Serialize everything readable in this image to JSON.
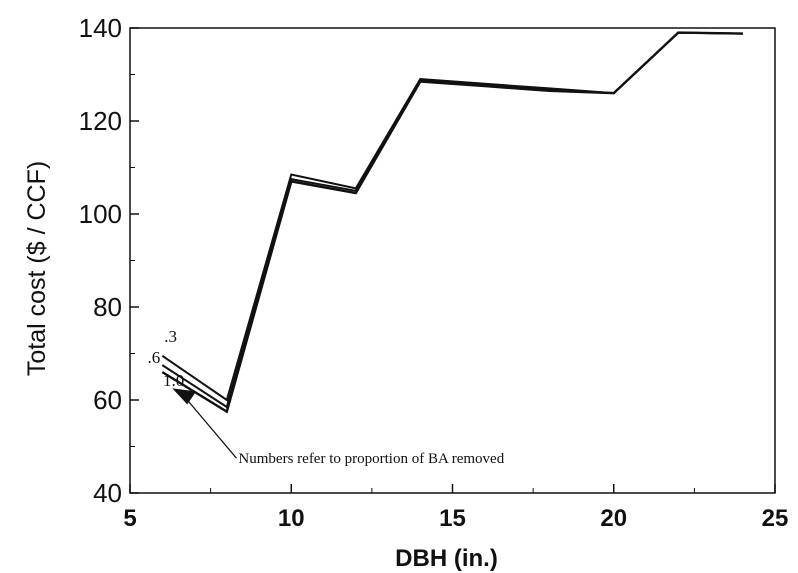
{
  "chart_data": {
    "type": "line",
    "title": "",
    "xlabel": "DBH  (in.)",
    "ylabel": "Total cost ($ / CCF)",
    "xlim": [
      5,
      25
    ],
    "ylim": [
      40,
      140
    ],
    "xticks": [
      5,
      10,
      15,
      20,
      25
    ],
    "yticks": [
      40,
      60,
      80,
      100,
      120,
      140
    ],
    "grid": false,
    "series": [
      {
        "name": ".3",
        "x": [
          6,
          8,
          10,
          12,
          14,
          16,
          18,
          20,
          22,
          24
        ],
        "y": [
          69.5,
          60,
          108.5,
          105.5,
          129,
          128,
          127,
          126,
          139,
          138.8
        ]
      },
      {
        "name": ".6",
        "x": [
          6,
          8,
          10,
          12,
          14,
          16,
          18,
          20,
          22,
          24
        ],
        "y": [
          67.5,
          58.5,
          107.5,
          105,
          128.8,
          127.8,
          126.8,
          126,
          139,
          138.8
        ]
      },
      {
        "name": "1.0",
        "x": [
          6,
          8,
          10,
          12,
          14,
          16,
          18,
          20,
          22,
          24
        ],
        "y": [
          66,
          57.5,
          107,
          104.5,
          128.5,
          127.5,
          126.5,
          126,
          139,
          138.8
        ]
      }
    ],
    "annotation": "Numbers refer to proportion of BA removed"
  }
}
